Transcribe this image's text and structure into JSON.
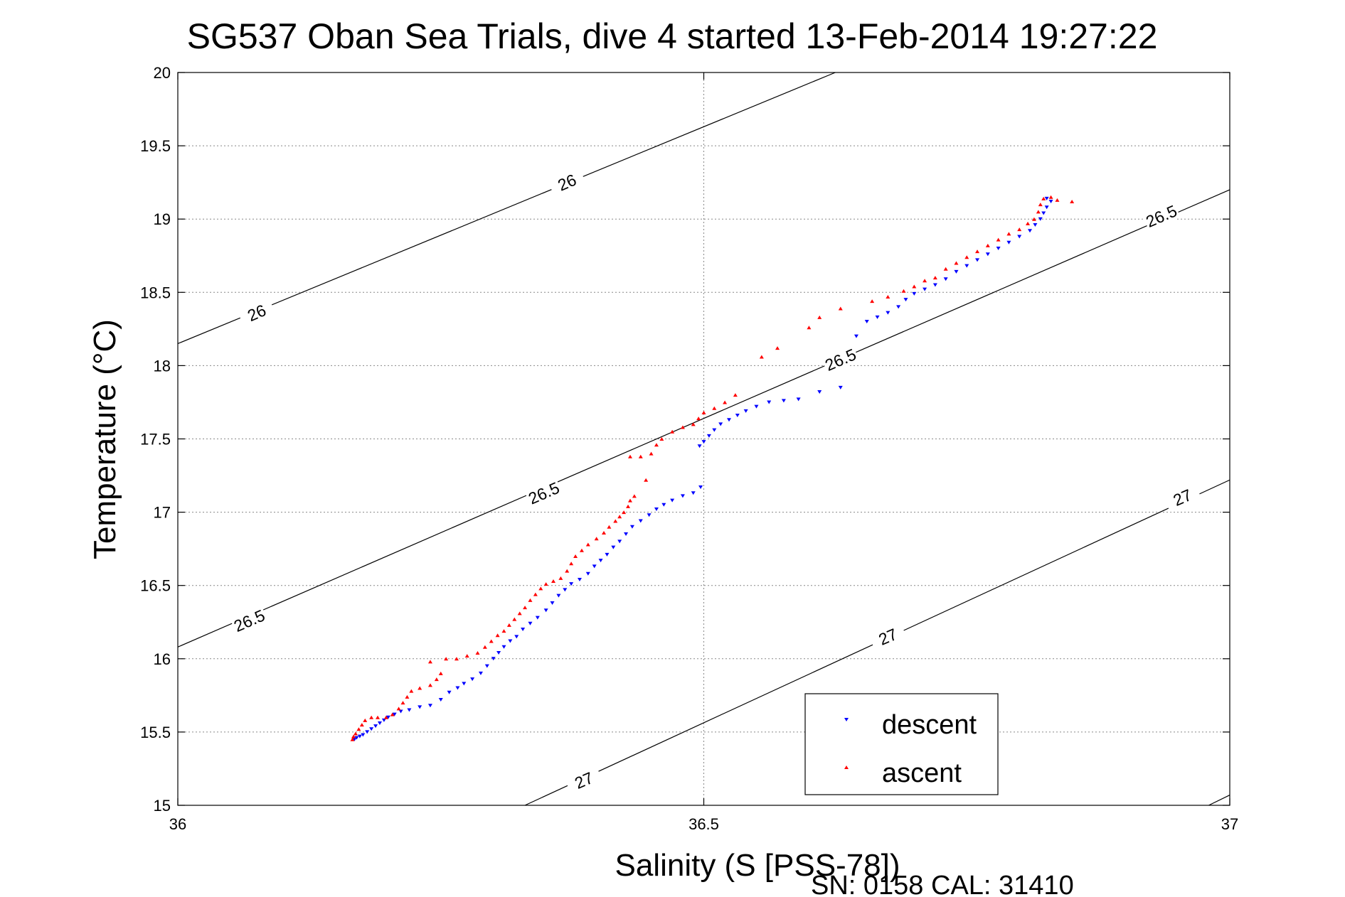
{
  "chart_data": {
    "type": "scatter",
    "title": "SG537 Oban Sea Trials, dive 4 started 13-Feb-2014 19:27:22",
    "xlabel": "Salinity (S [PSS-78])",
    "ylabel": "Temperature (°C)",
    "xlim": [
      36,
      37
    ],
    "ylim": [
      15,
      20
    ],
    "xticks": [
      36,
      36.5,
      37
    ],
    "xtick_labels": [
      "36",
      "36.5",
      "37"
    ],
    "yticks": [
      15,
      15.5,
      16,
      16.5,
      17,
      17.5,
      18,
      18.5,
      19,
      19.5,
      20
    ],
    "ytick_labels": [
      "15",
      "15.5",
      "16",
      "16.5",
      "17",
      "17.5",
      "18",
      "18.5",
      "19",
      "19.5",
      "20"
    ],
    "grid": true,
    "legend_position": "bottom-right",
    "series": [
      {
        "name": "descent",
        "color": "#0000ff",
        "marker": "triangle-down",
        "points": [
          [
            36.168,
            15.45
          ],
          [
            36.17,
            15.46
          ],
          [
            36.173,
            15.47
          ],
          [
            36.176,
            15.48
          ],
          [
            36.18,
            15.5
          ],
          [
            36.184,
            15.52
          ],
          [
            36.188,
            15.54
          ],
          [
            36.192,
            15.56
          ],
          [
            36.196,
            15.58
          ],
          [
            36.2,
            15.6
          ],
          [
            36.206,
            15.62
          ],
          [
            36.212,
            15.64
          ],
          [
            36.22,
            15.65
          ],
          [
            36.23,
            15.67
          ],
          [
            36.24,
            15.68
          ],
          [
            36.25,
            15.72
          ],
          [
            36.258,
            15.77
          ],
          [
            36.266,
            15.8
          ],
          [
            36.272,
            15.83
          ],
          [
            36.28,
            15.86
          ],
          [
            36.288,
            15.9
          ],
          [
            36.294,
            15.95
          ],
          [
            36.3,
            16.0
          ],
          [
            36.305,
            16.04
          ],
          [
            36.31,
            16.08
          ],
          [
            36.316,
            16.12
          ],
          [
            36.322,
            16.15
          ],
          [
            36.328,
            16.2
          ],
          [
            36.335,
            16.24
          ],
          [
            36.342,
            16.28
          ],
          [
            36.35,
            16.33
          ],
          [
            36.356,
            16.38
          ],
          [
            36.362,
            16.43
          ],
          [
            36.368,
            16.47
          ],
          [
            36.374,
            16.51
          ],
          [
            36.382,
            16.54
          ],
          [
            36.39,
            16.58
          ],
          [
            36.396,
            16.63
          ],
          [
            36.402,
            16.67
          ],
          [
            36.408,
            16.71
          ],
          [
            36.414,
            16.76
          ],
          [
            36.42,
            16.8
          ],
          [
            36.426,
            16.85
          ],
          [
            36.432,
            16.9
          ],
          [
            36.44,
            16.94
          ],
          [
            36.448,
            16.98
          ],
          [
            36.455,
            17.02
          ],
          [
            36.462,
            17.05
          ],
          [
            36.47,
            17.08
          ],
          [
            36.48,
            17.11
          ],
          [
            36.49,
            17.13
          ],
          [
            36.497,
            17.17
          ],
          [
            36.496,
            17.45
          ],
          [
            36.5,
            17.48
          ],
          [
            36.505,
            17.52
          ],
          [
            36.51,
            17.56
          ],
          [
            36.516,
            17.6
          ],
          [
            36.524,
            17.63
          ],
          [
            36.532,
            17.66
          ],
          [
            36.54,
            17.69
          ],
          [
            36.55,
            17.72
          ],
          [
            36.562,
            17.75
          ],
          [
            36.576,
            17.76
          ],
          [
            36.59,
            17.77
          ],
          [
            36.61,
            17.82
          ],
          [
            36.63,
            17.85
          ],
          [
            36.645,
            18.2
          ],
          [
            36.655,
            18.3
          ],
          [
            36.665,
            18.33
          ],
          [
            36.675,
            18.36
          ],
          [
            36.685,
            18.4
          ],
          [
            36.692,
            18.45
          ],
          [
            36.7,
            18.49
          ],
          [
            36.71,
            18.52
          ],
          [
            36.72,
            18.55
          ],
          [
            36.73,
            18.59
          ],
          [
            36.74,
            18.64
          ],
          [
            36.75,
            18.68
          ],
          [
            36.76,
            18.72
          ],
          [
            36.77,
            18.76
          ],
          [
            36.78,
            18.8
          ],
          [
            36.79,
            18.84
          ],
          [
            36.8,
            18.88
          ],
          [
            36.81,
            18.92
          ],
          [
            36.815,
            18.96
          ],
          [
            36.82,
            19.0
          ],
          [
            36.823,
            19.04
          ],
          [
            36.826,
            19.08
          ],
          [
            36.83,
            19.12
          ],
          [
            36.826,
            19.14
          ]
        ]
      },
      {
        "name": "ascent",
        "color": "#ff0000",
        "marker": "triangle-up",
        "points": [
          [
            36.166,
            15.45
          ],
          [
            36.167,
            15.47
          ],
          [
            36.169,
            15.49
          ],
          [
            36.172,
            15.52
          ],
          [
            36.175,
            15.55
          ],
          [
            36.178,
            15.58
          ],
          [
            36.184,
            15.6
          ],
          [
            36.19,
            15.6
          ],
          [
            36.198,
            15.6
          ],
          [
            36.204,
            15.62
          ],
          [
            36.21,
            15.66
          ],
          [
            36.214,
            15.7
          ],
          [
            36.218,
            15.74
          ],
          [
            36.222,
            15.78
          ],
          [
            36.23,
            15.8
          ],
          [
            36.24,
            15.82
          ],
          [
            36.246,
            15.86
          ],
          [
            36.25,
            15.9
          ],
          [
            36.24,
            15.98
          ],
          [
            36.255,
            16.0
          ],
          [
            36.265,
            16.0
          ],
          [
            36.275,
            16.02
          ],
          [
            36.285,
            16.04
          ],
          [
            36.292,
            16.08
          ],
          [
            36.298,
            16.12
          ],
          [
            36.304,
            16.16
          ],
          [
            36.31,
            16.19
          ],
          [
            36.315,
            16.23
          ],
          [
            36.32,
            16.27
          ],
          [
            36.325,
            16.31
          ],
          [
            36.33,
            16.35
          ],
          [
            36.335,
            16.4
          ],
          [
            36.34,
            16.44
          ],
          [
            36.345,
            16.48
          ],
          [
            36.35,
            16.51
          ],
          [
            36.357,
            16.53
          ],
          [
            36.364,
            16.55
          ],
          [
            36.37,
            16.6
          ],
          [
            36.374,
            16.65
          ],
          [
            36.378,
            16.7
          ],
          [
            36.384,
            16.74
          ],
          [
            36.39,
            16.78
          ],
          [
            36.398,
            16.82
          ],
          [
            36.405,
            16.86
          ],
          [
            36.41,
            16.9
          ],
          [
            36.416,
            16.94
          ],
          [
            36.42,
            16.97
          ],
          [
            36.424,
            17.0
          ],
          [
            36.428,
            17.04
          ],
          [
            36.43,
            17.08
          ],
          [
            36.434,
            17.11
          ],
          [
            36.43,
            17.38
          ],
          [
            36.44,
            17.38
          ],
          [
            36.45,
            17.4
          ],
          [
            36.445,
            17.22
          ],
          [
            36.455,
            17.46
          ],
          [
            36.46,
            17.5
          ],
          [
            36.47,
            17.55
          ],
          [
            36.48,
            17.58
          ],
          [
            36.49,
            17.6
          ],
          [
            36.495,
            17.64
          ],
          [
            36.5,
            17.68
          ],
          [
            36.51,
            17.71
          ],
          [
            36.52,
            17.75
          ],
          [
            36.53,
            17.8
          ],
          [
            36.555,
            18.06
          ],
          [
            36.57,
            18.12
          ],
          [
            36.6,
            18.26
          ],
          [
            36.61,
            18.33
          ],
          [
            36.63,
            18.39
          ],
          [
            36.66,
            18.44
          ],
          [
            36.675,
            18.47
          ],
          [
            36.69,
            18.51
          ],
          [
            36.7,
            18.54
          ],
          [
            36.71,
            18.58
          ],
          [
            36.72,
            18.6
          ],
          [
            36.73,
            18.66
          ],
          [
            36.74,
            18.7
          ],
          [
            36.75,
            18.74
          ],
          [
            36.76,
            18.78
          ],
          [
            36.77,
            18.82
          ],
          [
            36.78,
            18.86
          ],
          [
            36.79,
            18.9
          ],
          [
            36.8,
            18.93
          ],
          [
            36.808,
            18.97
          ],
          [
            36.814,
            19.0
          ],
          [
            36.818,
            19.05
          ],
          [
            36.82,
            19.1
          ],
          [
            36.823,
            19.14
          ],
          [
            36.83,
            19.15
          ],
          [
            36.836,
            19.13
          ],
          [
            36.85,
            19.12
          ]
        ]
      }
    ],
    "contours": [
      {
        "level": "26",
        "segments": [
          [
            [
              36.0,
              18.15
            ],
            [
              36.625,
              20.0
            ]
          ]
        ],
        "labels": [
          [
            36.075,
            18.36
          ],
          [
            36.37,
            19.25
          ]
        ]
      },
      {
        "level": "26.5",
        "segments": [
          [
            [
              36.0,
              16.08
            ],
            [
              37.0,
              19.2
            ]
          ]
        ],
        "labels": [
          [
            36.068,
            16.26
          ],
          [
            36.348,
            17.13
          ],
          [
            36.63,
            18.04
          ],
          [
            36.935,
            19.02
          ]
        ]
      },
      {
        "level": "27",
        "segments": [
          [
            [
              36.33,
              15.0
            ],
            [
              37.0,
              17.22
            ]
          ],
          [
            [
              36.98,
              15.0
            ],
            [
              37.0,
              15.07
            ]
          ]
        ],
        "labels": [
          [
            36.386,
            15.17
          ],
          [
            36.675,
            16.15
          ],
          [
            36.955,
            17.1
          ]
        ]
      }
    ]
  },
  "footer_text": "SN: 0158  CAL: 31410"
}
